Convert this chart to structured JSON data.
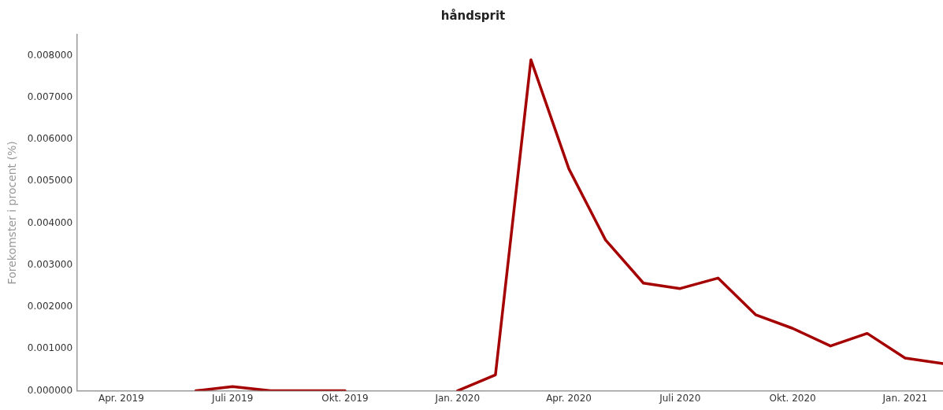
{
  "chart_data": {
    "type": "line",
    "title": "håndsprit",
    "ylabel": "Forekomster i procent (%)",
    "x": [
      "2019-06",
      "2019-07",
      "2019-08",
      "2019-09",
      "2019-10",
      "2019-11",
      "2019-12",
      "2020-01",
      "2020-02",
      "2020-03",
      "2020-04",
      "2020-05",
      "2020-06",
      "2020-07",
      "2020-08",
      "2020-09",
      "2020-10",
      "2020-11",
      "2020-12",
      "2021-01",
      "2021-02"
    ],
    "series": [
      {
        "color": "#a50000",
        "values": [
          0,
          0.0001,
          0,
          0,
          0,
          null,
          null,
          0,
          0.00038,
          0.0079,
          0.0053,
          0.0036,
          0.00257,
          0.00244,
          0.00269,
          0.00181,
          0.00149,
          0.00107,
          0.00137,
          0.00078,
          0.00065
        ]
      }
    ],
    "xlim": [
      "2019-02-24",
      "2021-02-01"
    ],
    "xticks": [
      {
        "value": "2019-04",
        "label": "Apr. 2019"
      },
      {
        "value": "2019-07",
        "label": "Juli 2019"
      },
      {
        "value": "2019-10",
        "label": "Okt. 2019"
      },
      {
        "value": "2020-01",
        "label": "Jan. 2020"
      },
      {
        "value": "2020-04",
        "label": "Apr. 2020"
      },
      {
        "value": "2020-07",
        "label": "Juli 2020"
      },
      {
        "value": "2020-10",
        "label": "Okt. 2020"
      },
      {
        "value": "2021-01",
        "label": "Jan. 2021"
      }
    ],
    "ylim": [
      0,
      0.0085
    ],
    "yticks": [
      {
        "value": 0,
        "label": "0.000000"
      },
      {
        "value": 0.001,
        "label": "0.001000"
      },
      {
        "value": 0.002,
        "label": "0.002000"
      },
      {
        "value": 0.003,
        "label": "0.003000"
      },
      {
        "value": 0.004,
        "label": "0.004000"
      },
      {
        "value": 0.005,
        "label": "0.005000"
      },
      {
        "value": 0.006,
        "label": "0.006000"
      },
      {
        "value": 0.007,
        "label": "0.007000"
      },
      {
        "value": 0.008,
        "label": "0.008000"
      }
    ],
    "grid": false,
    "legend": false,
    "marker": "none",
    "line_style": "solid"
  }
}
